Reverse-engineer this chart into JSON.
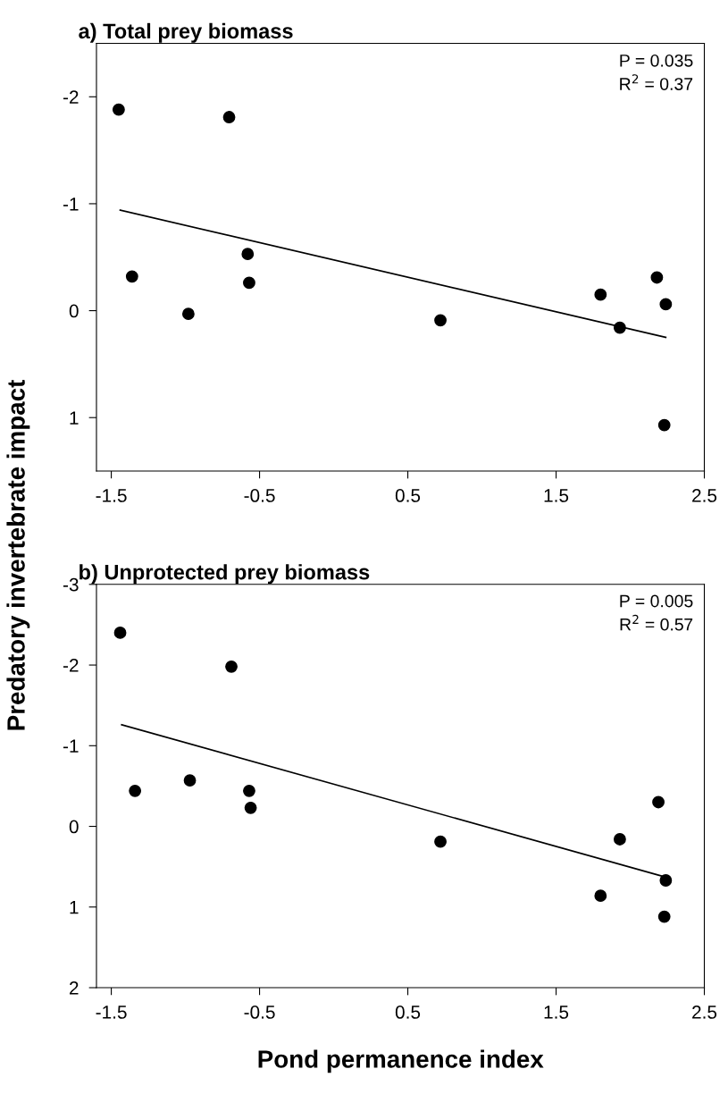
{
  "chart_data": [
    {
      "type": "scatter",
      "title": "a) Total prey biomass",
      "ylabel": "Predatory invertebrate impact",
      "xlim": [
        -1.6,
        2.5
      ],
      "xticks": [
        -1.5,
        -0.5,
        0.5,
        1.5,
        2.5
      ],
      "ylim": [
        1.5,
        -2.5
      ],
      "yticks": [
        -2,
        -1,
        0,
        1
      ],
      "grid": false,
      "legend": false,
      "annotations": [
        "P = 0.035",
        "R$^{2}$ = 0.37"
      ],
      "series": [
        {
          "marker": "circle",
          "color": "#000000",
          "x": [
            -1.45,
            -1.36,
            -0.98,
            -0.705,
            -0.58,
            -0.57,
            0.72,
            1.8,
            1.93,
            2.18,
            2.24,
            2.23
          ],
          "values": [
            -1.88,
            -0.32,
            0.03,
            -1.81,
            -0.53,
            -0.26,
            0.09,
            -0.15,
            0.16,
            -0.31,
            -0.06,
            1.07
          ]
        },
        {
          "type": "line",
          "color": "#000000",
          "x": [
            -1.44,
            2.24
          ],
          "values": [
            -0.94,
            0.25
          ]
        }
      ]
    },
    {
      "type": "scatter",
      "title": "b) Unprotected prey biomass",
      "xlabel": "Pond permanence index",
      "xlim": [
        -1.6,
        2.5
      ],
      "xticks": [
        -1.5,
        -0.5,
        0.5,
        1.5,
        2.5
      ],
      "ylim": [
        2,
        -3
      ],
      "yticks": [
        -3,
        -2,
        -1,
        0,
        1,
        2
      ],
      "grid": false,
      "legend": false,
      "annotations": [
        "P = 0.005",
        "R$^{2}$ = 0.57"
      ],
      "series": [
        {
          "marker": "circle",
          "color": "#000000",
          "x": [
            -1.44,
            -1.34,
            -0.97,
            -0.69,
            -0.57,
            -0.56,
            0.72,
            1.8,
            1.93,
            2.19,
            2.24,
            2.23
          ],
          "values": [
            -2.4,
            -0.44,
            -0.57,
            -1.98,
            -0.44,
            -0.23,
            0.19,
            0.86,
            0.16,
            -0.3,
            0.67,
            1.12
          ]
        },
        {
          "type": "line",
          "color": "#000000",
          "x": [
            -1.43,
            2.24
          ],
          "values": [
            -1.26,
            0.63
          ]
        }
      ]
    }
  ]
}
